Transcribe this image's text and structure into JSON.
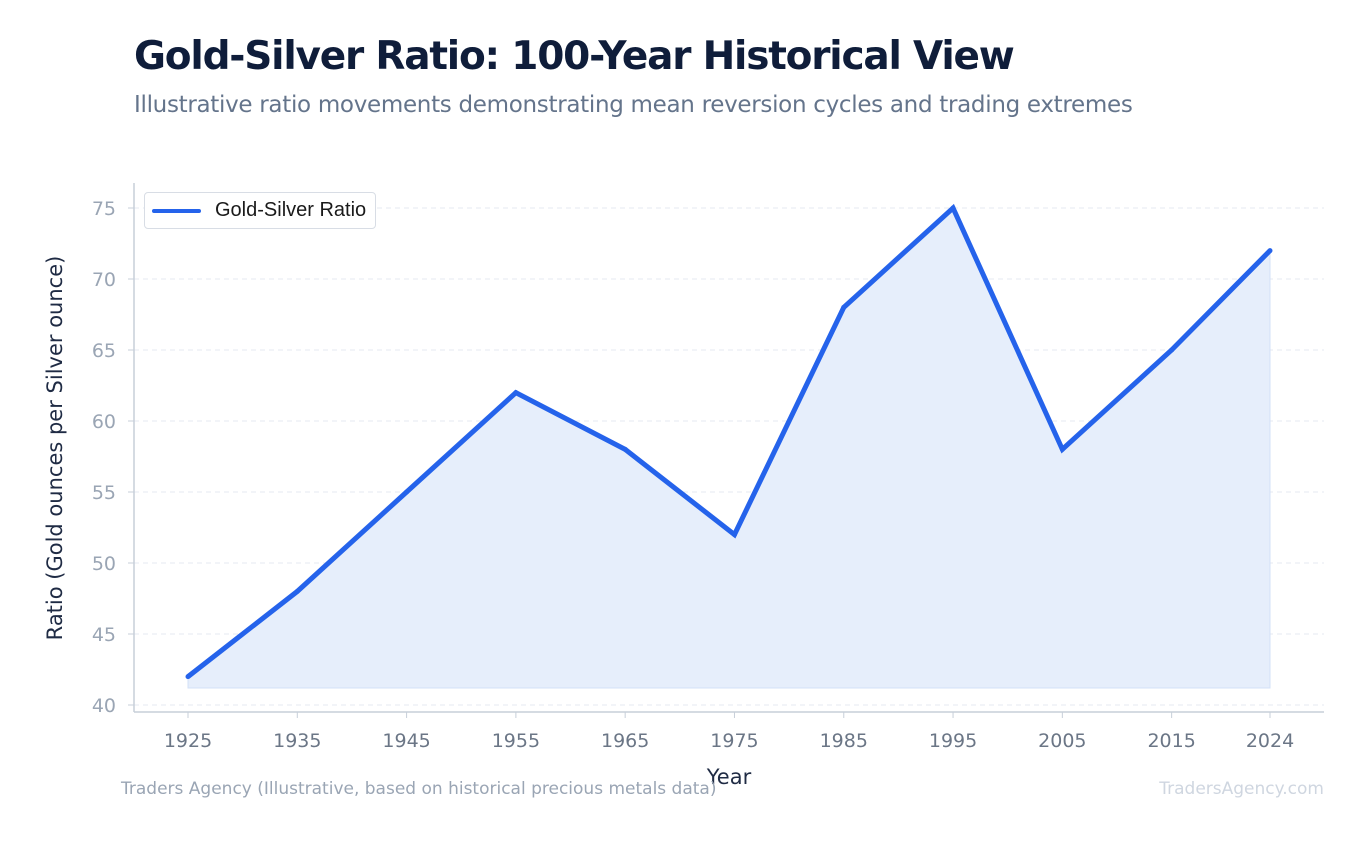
{
  "chart_data": {
    "type": "area",
    "title": "Gold-Silver Ratio: 100-Year Historical View",
    "subtitle": "Illustrative ratio movements demonstrating mean reversion cycles and trading extremes",
    "xlabel": "Year",
    "ylabel": "Ratio (Gold ounces per Silver ounce)",
    "x": [
      1925,
      1935,
      1945,
      1955,
      1965,
      1975,
      1985,
      1995,
      2005,
      2015,
      2024
    ],
    "series": [
      {
        "name": "Gold-Silver Ratio",
        "values": [
          42,
          48,
          55,
          62,
          58,
          52,
          68,
          75,
          58,
          65,
          72
        ],
        "color": "#2563eb",
        "fill_color": "#e6eefb"
      }
    ],
    "x_ticks": [
      "1925",
      "1935",
      "1945",
      "1955",
      "1965",
      "1975",
      "1985",
      "1995",
      "2005",
      "2015",
      "2024"
    ],
    "y_ticks": [
      "40",
      "45",
      "50",
      "55",
      "60",
      "65",
      "70",
      "75"
    ],
    "ylim": [
      40,
      76
    ],
    "grid": "horizontal dashed",
    "legend_position": "top-left",
    "source": "Traders Agency (Illustrative, based on historical precious metals data)",
    "watermark": "TradersAgency.com"
  }
}
